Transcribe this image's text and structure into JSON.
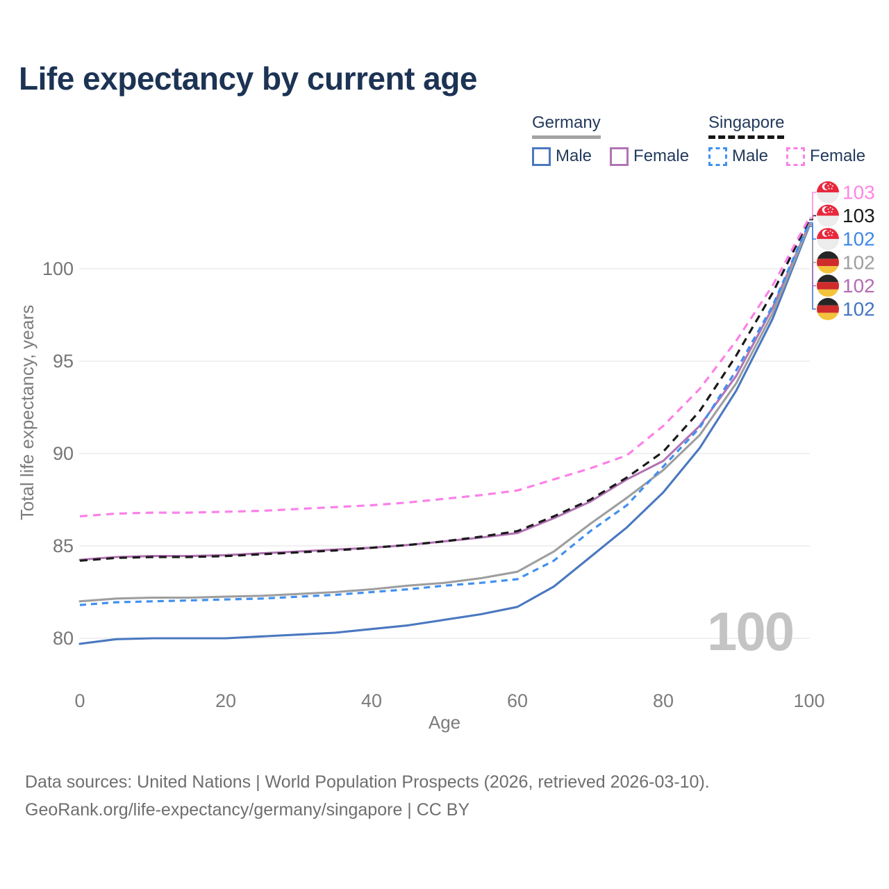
{
  "title": "Life expectancy by current age",
  "watermark": "100",
  "legend": {
    "groups": [
      {
        "label": "Germany",
        "swatch_style": "solid",
        "swatch_color": "#a3a3a3",
        "items": [
          {
            "label": "Male",
            "color": "#4a78bf",
            "dashed": false
          },
          {
            "label": "Female",
            "color": "#b273b4",
            "dashed": false
          }
        ]
      },
      {
        "label": "Singapore",
        "swatch_style": "dashed",
        "swatch_color": "#151515",
        "items": [
          {
            "label": "Male",
            "color": "#4090f0",
            "dashed": true
          },
          {
            "label": "Female",
            "color": "#fb80e8",
            "dashed": true
          }
        ]
      }
    ]
  },
  "footer": {
    "line1": "Data sources: United Nations | World Population Prospects (2026, retrieved 2026-03-10).",
    "line2": "GeoRank.org/life-expectancy/germany/singapore | CC BY"
  },
  "chart_data": {
    "type": "line",
    "title": "Life expectancy by current age",
    "xlabel": "Age",
    "ylabel": "Total life expectancy, years",
    "x_ticks": [
      0,
      20,
      40,
      60,
      80,
      100
    ],
    "y_ticks": [
      80,
      85,
      90,
      95,
      100
    ],
    "xlim": [
      0,
      100
    ],
    "ylim": [
      79,
      104
    ],
    "grid": "horizontal-only",
    "legend_position": "top-right",
    "axis_color": "#7c7c7c",
    "grid_color": "#e8e8e8",
    "ages": [
      0,
      5,
      10,
      15,
      20,
      25,
      30,
      35,
      40,
      45,
      50,
      55,
      60,
      65,
      70,
      75,
      80,
      85,
      90,
      95,
      100
    ],
    "series": [
      {
        "name": "Germany Male",
        "country": "Germany",
        "sex": "Male",
        "color": "#4a78bf",
        "dashed": false,
        "dash": "",
        "flag": "de",
        "label_row": 5,
        "end_label": "102",
        "label_color": "#4273c4",
        "values": [
          79.7,
          79.95,
          80.0,
          80.0,
          80.0,
          80.1,
          80.2,
          80.3,
          80.5,
          80.7,
          81.0,
          81.3,
          81.7,
          82.8,
          84.4,
          86.0,
          87.9,
          90.3,
          93.4,
          97.3,
          102.3
        ]
      },
      {
        "name": "Germany Female",
        "country": "Germany",
        "sex": "Female",
        "color": "#b273b4",
        "dashed": false,
        "dash": "",
        "flag": "de",
        "label_row": 4,
        "end_label": "102",
        "label_color": "#b56ab5",
        "values": [
          84.25,
          84.4,
          84.45,
          84.45,
          84.5,
          84.6,
          84.7,
          84.8,
          84.9,
          85.05,
          85.25,
          85.45,
          85.7,
          86.5,
          87.4,
          88.6,
          89.6,
          91.5,
          94.2,
          97.9,
          102.42
        ]
      },
      {
        "name": "Germany Total",
        "country": "Germany",
        "sex": "Total",
        "color": "#9e9e9e",
        "dashed": false,
        "dash": "",
        "flag": "de",
        "label_row": 3,
        "end_label": "102",
        "label_color": "#9e9e9e",
        "values": [
          82.0,
          82.15,
          82.2,
          82.2,
          82.25,
          82.3,
          82.4,
          82.5,
          82.65,
          82.85,
          83.0,
          83.25,
          83.6,
          84.7,
          86.2,
          87.6,
          89.1,
          91.0,
          93.8,
          97.6,
          102.38
        ]
      },
      {
        "name": "Singapore Male",
        "country": "Singapore",
        "sex": "Male",
        "color": "#4090f0",
        "dashed": true,
        "dash": "9 7",
        "flag": "sg",
        "label_row": 2,
        "end_label": "102",
        "label_color": "#3e87e8",
        "values": [
          81.8,
          81.95,
          82.0,
          82.05,
          82.1,
          82.15,
          82.25,
          82.35,
          82.5,
          82.65,
          82.85,
          83.0,
          83.2,
          84.2,
          85.8,
          87.2,
          89.3,
          91.4,
          94.5,
          98.0,
          102.5
        ]
      },
      {
        "name": "Singapore Total",
        "country": "Singapore",
        "sex": "Total",
        "color": "#1a1a1a",
        "dashed": true,
        "dash": "11 8",
        "flag": "sg",
        "label_row": 1,
        "end_label": "103",
        "label_color": "#1a1a1a",
        "values": [
          84.2,
          84.35,
          84.4,
          84.4,
          84.45,
          84.55,
          84.65,
          84.75,
          84.9,
          85.05,
          85.25,
          85.5,
          85.8,
          86.6,
          87.5,
          88.7,
          90.1,
          92.3,
          95.3,
          98.7,
          102.65
        ]
      },
      {
        "name": "Singapore Female",
        "country": "Singapore",
        "sex": "Female",
        "color": "#fb80e8",
        "dashed": true,
        "dash": "11 8",
        "flag": "sg",
        "label_row": 0,
        "end_label": "103",
        "label_color": "#ff85e3",
        "values": [
          86.6,
          86.75,
          86.8,
          86.8,
          86.85,
          86.9,
          87.0,
          87.1,
          87.2,
          87.35,
          87.55,
          87.75,
          88.0,
          88.6,
          89.2,
          89.9,
          91.5,
          93.5,
          96.1,
          99.1,
          102.75
        ]
      }
    ]
  }
}
